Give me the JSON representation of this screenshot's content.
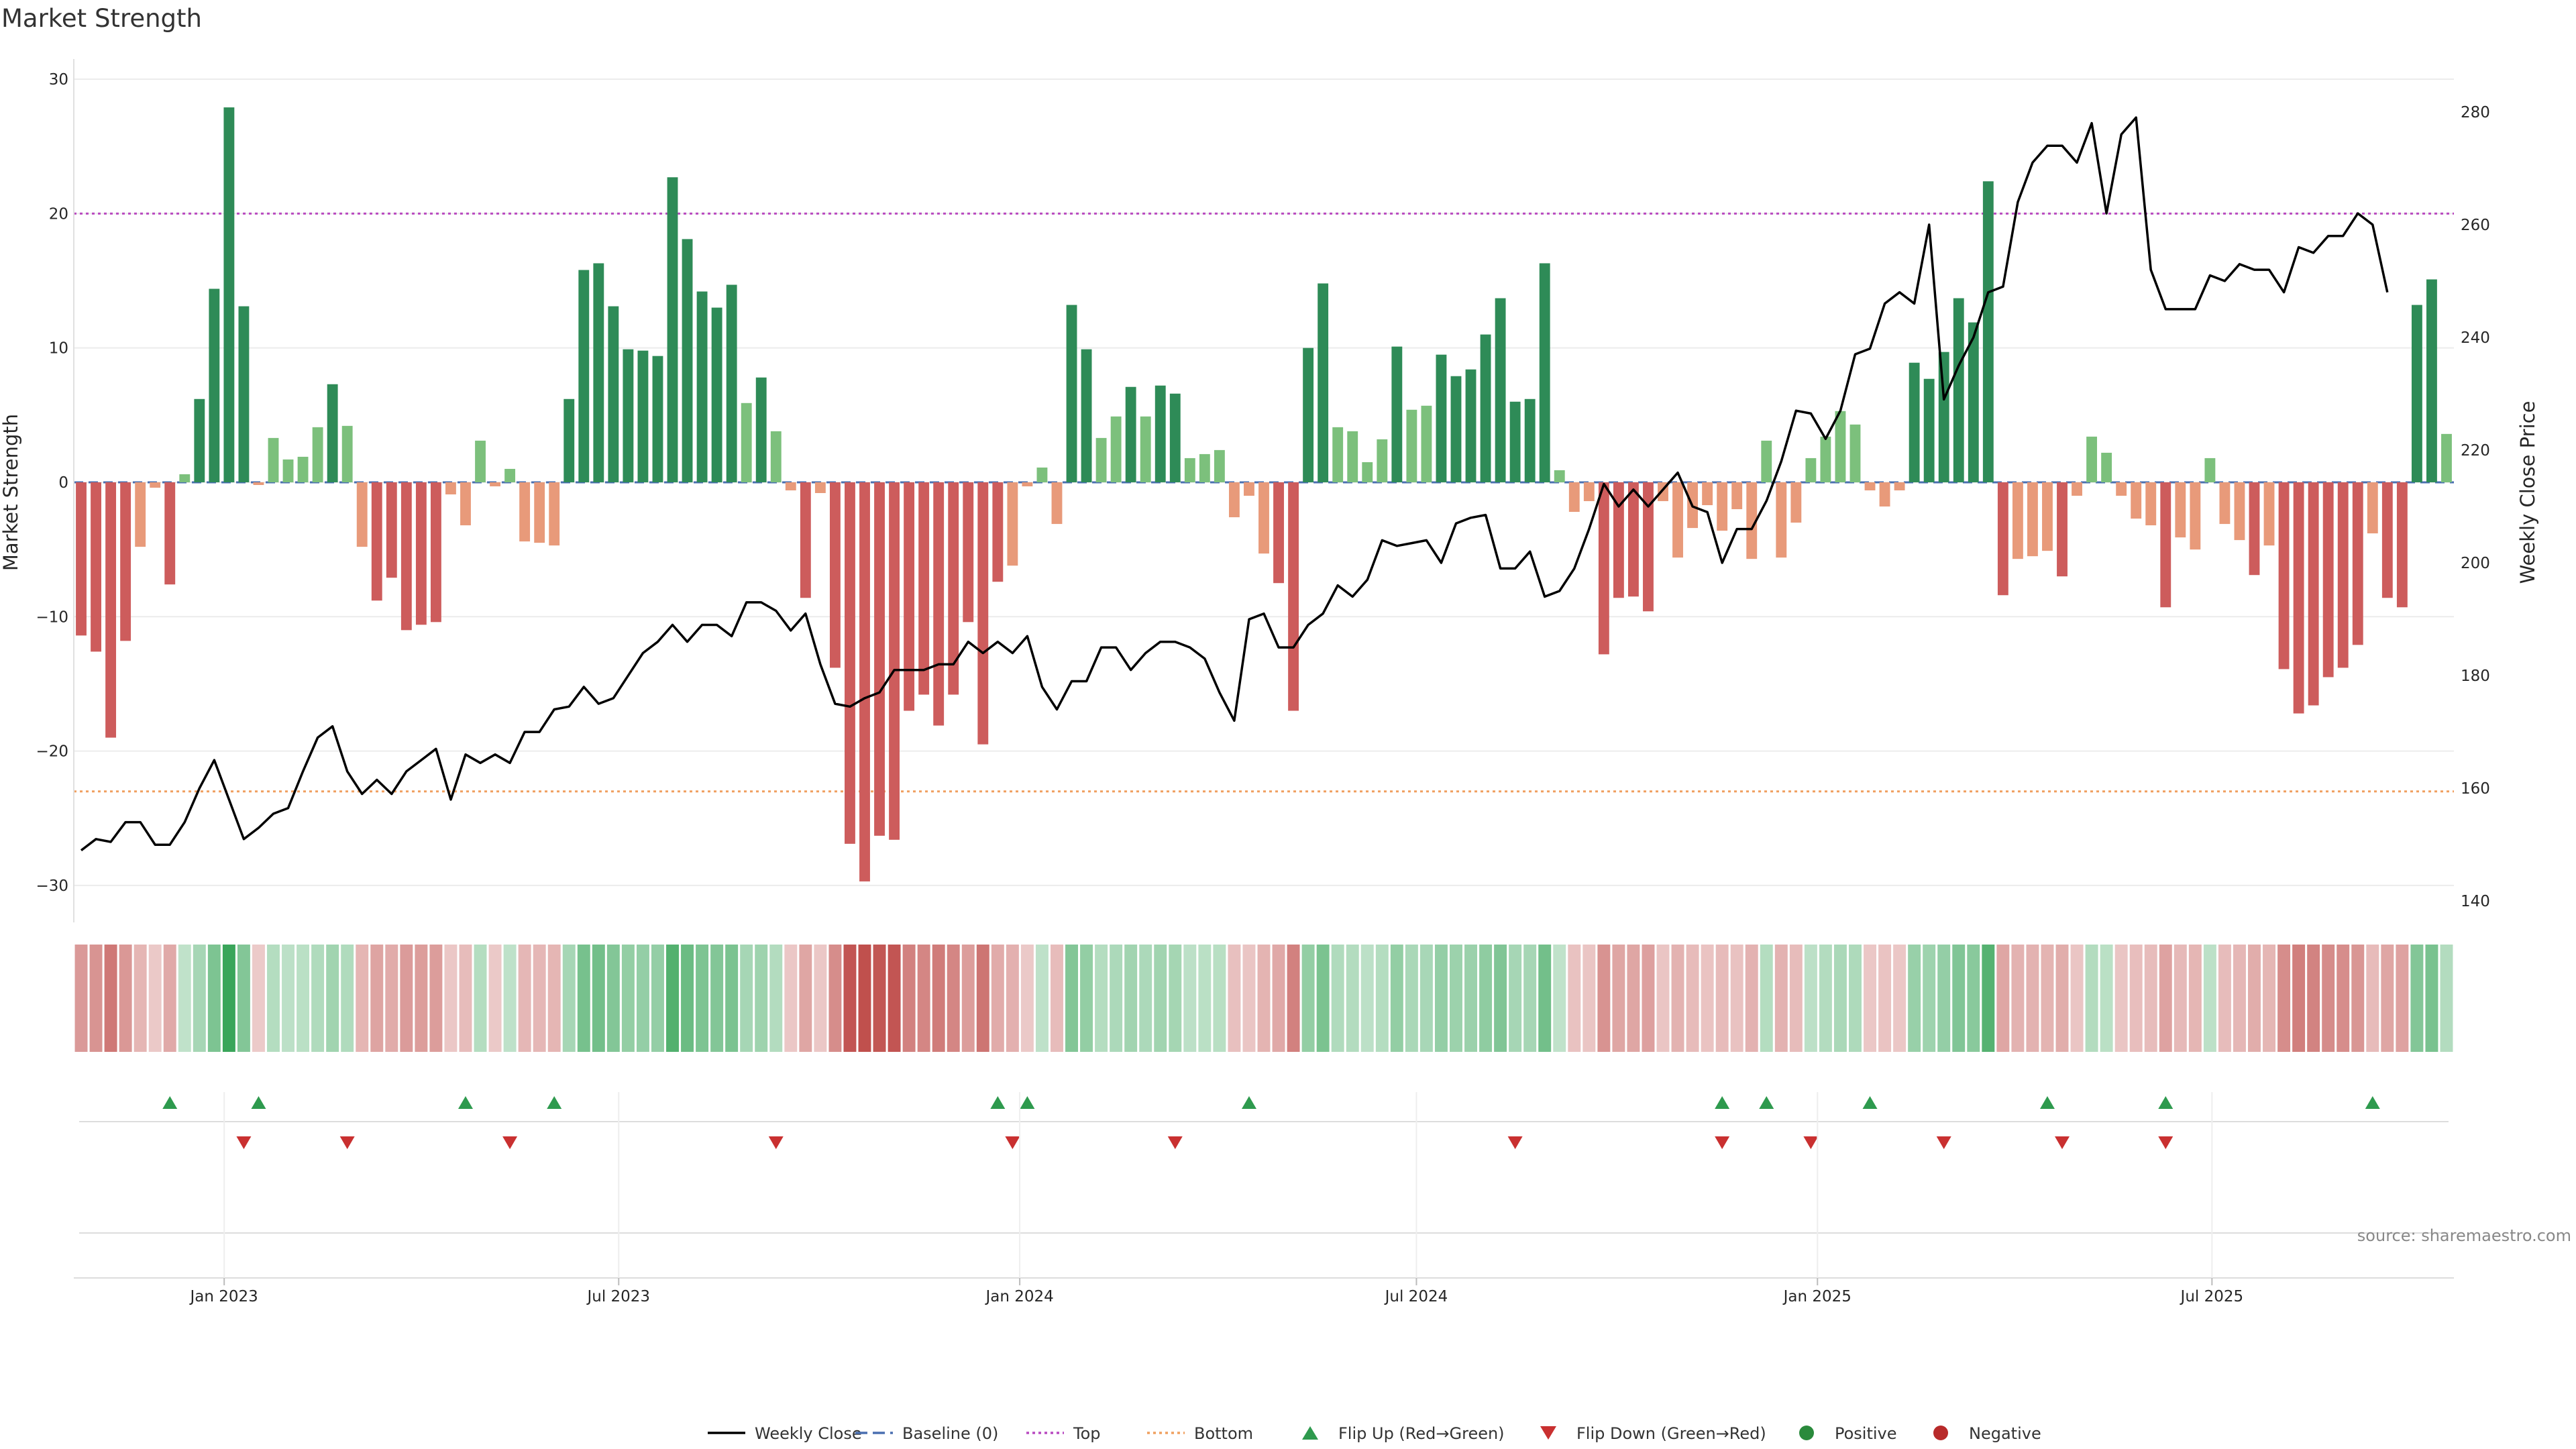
{
  "title": "Market Strength",
  "source": "source: sharemaestro.com",
  "chart_data": {
    "type": "bar",
    "title": "Market Strength",
    "ylabel": "Market Strength",
    "y2label": "Weekly Close Price",
    "ylim": [
      -32,
      30.5
    ],
    "y2lim": [
      138,
      287
    ],
    "yticks": [
      -30,
      -20,
      -10,
      0,
      10,
      20,
      30
    ],
    "y2ticks": [
      140,
      160,
      180,
      200,
      220,
      240,
      260,
      280
    ],
    "x_start_date": "2022-10-24",
    "x_interval_days": 7,
    "x_date_range": [
      "2022-10-24",
      "2025-10-13"
    ],
    "xticks": [
      {
        "label": "Jan 2023",
        "date": "2023-01-01"
      },
      {
        "label": "Jul 2023",
        "date": "2023-07-01"
      },
      {
        "label": "Jan 2024",
        "date": "2024-01-01"
      },
      {
        "label": "Jul 2024",
        "date": "2024-07-01"
      },
      {
        "label": "Jan 2025",
        "date": "2025-01-01"
      },
      {
        "label": "Jul 2025",
        "date": "2025-07-01"
      }
    ],
    "top_line": 20,
    "bottom_line": -23,
    "baseline": 0,
    "strength": [
      -11.4,
      -12.6,
      -19.0,
      -11.8,
      -4.8,
      -0.4,
      -7.6,
      0.6,
      6.2,
      14.4,
      27.9,
      13.1,
      -0.2,
      3.3,
      1.7,
      1.9,
      4.1,
      7.3,
      4.2,
      -4.8,
      -8.8,
      -7.1,
      -11.0,
      -10.6,
      -10.4,
      -0.9,
      -3.2,
      3.1,
      -0.3,
      1.0,
      -4.4,
      -4.5,
      -4.7,
      6.2,
      15.8,
      16.3,
      13.1,
      9.9,
      9.8,
      9.4,
      22.7,
      18.1,
      14.2,
      13.0,
      14.7,
      5.9,
      7.8,
      3.8,
      -0.6,
      -8.6,
      -0.8,
      -13.8,
      -26.9,
      -29.7,
      -26.3,
      -26.6,
      -17.0,
      -15.8,
      -18.1,
      -15.8,
      -10.4,
      -19.5,
      -7.4,
      -6.2,
      -0.3,
      1.1,
      -3.1,
      13.2,
      9.9,
      3.3,
      4.9,
      7.1,
      4.9,
      7.2,
      6.6,
      1.8,
      2.1,
      2.4,
      -2.6,
      -1.0,
      -5.3,
      -7.5,
      -17.0,
      10.0,
      14.8,
      4.1,
      3.8,
      1.5,
      3.2,
      10.1,
      5.4,
      5.7,
      9.5,
      7.9,
      8.4,
      11.0,
      13.7,
      6.0,
      6.2,
      16.3,
      0.9,
      -2.2,
      -1.4,
      -12.8,
      -8.6,
      -8.5,
      -9.6,
      -1.4,
      -5.6,
      -3.4,
      -1.7,
      -3.6,
      -2.0,
      -5.7,
      3.1,
      -5.6,
      -3.0,
      1.8,
      3.4,
      5.3,
      4.3,
      -0.6,
      -1.8,
      -0.6,
      8.9,
      7.7,
      9.7,
      13.7,
      11.9,
      22.4,
      -8.4,
      -5.7,
      -5.5,
      -5.1,
      -7.0,
      -1.0,
      3.4,
      2.2,
      -1.0,
      -2.7,
      -3.2,
      -9.3,
      -4.1,
      -5.0,
      1.8,
      -3.1,
      -4.3,
      -6.9,
      -4.7,
      -13.9,
      -17.2,
      -16.6,
      -14.5,
      -13.8,
      -12.1,
      -3.8,
      -8.6,
      -9.3,
      13.2,
      15.1,
      3.6
    ],
    "weekly_close": [
      149,
      151,
      150.5,
      154,
      154,
      150,
      150,
      154,
      160,
      165,
      158,
      151,
      153,
      155.5,
      156.5,
      163,
      169,
      171,
      163,
      159,
      161.5,
      159,
      163,
      165,
      167,
      158,
      166,
      164.5,
      166,
      164.5,
      170,
      170,
      174,
      174.5,
      178,
      175,
      176,
      180,
      184,
      186,
      189,
      186,
      189,
      189,
      187,
      193,
      193,
      191.5,
      188,
      191,
      182,
      175,
      174.5,
      176,
      177,
      181,
      181,
      181,
      182,
      182,
      186,
      184,
      186,
      184,
      187,
      178,
      174,
      179,
      179,
      185,
      185,
      181,
      184,
      186,
      186,
      185,
      183,
      177,
      172,
      190,
      191,
      185,
      185,
      189,
      191,
      196,
      194,
      197,
      204,
      203,
      203.5,
      204,
      200,
      207,
      208,
      208.5,
      199,
      199,
      202,
      194,
      195,
      199,
      206,
      214,
      210,
      213,
      210,
      213,
      216,
      210,
      209,
      200,
      206,
      206,
      211,
      218,
      227,
      226.5,
      222,
      227,
      237,
      238,
      246,
      248,
      246,
      260,
      229,
      235,
      240,
      248,
      249,
      264,
      271,
      274,
      274,
      271,
      278,
      262,
      276,
      279,
      252,
      245,
      245,
      245,
      251,
      250,
      253,
      252,
      252,
      248,
      256,
      255,
      258,
      258,
      262,
      260,
      248
    ],
    "markers": {
      "flip_up": [
        6,
        12,
        26,
        32,
        62,
        64,
        79,
        111,
        114,
        121,
        133,
        141,
        155
      ],
      "flip_down": [
        11,
        18,
        29,
        47,
        63,
        74,
        97,
        111,
        117,
        126,
        134,
        141
      ]
    },
    "legend": [
      {
        "label": "Weekly Close",
        "color": "#000000",
        "kind": "line"
      },
      {
        "label": "Baseline (0)",
        "color": "#4a6fb0",
        "kind": "dashed"
      },
      {
        "label": "Top",
        "color": "#b94ac0",
        "kind": "dotted"
      },
      {
        "label": "Bottom",
        "color": "#f0a060",
        "kind": "dotted"
      },
      {
        "label": "Flip Up (Red→Green)",
        "color": "#2e9a4e",
        "kind": "tri-up"
      },
      {
        "label": "Flip Down (Green→Red)",
        "color": "#c93030",
        "kind": "tri-down"
      },
      {
        "label": "Positive",
        "color": "#2a8a3c",
        "kind": "dot"
      },
      {
        "label": "Negative",
        "color": "#b82a2a",
        "kind": "dot"
      }
    ],
    "colors": {
      "pos_strong": "#2e8b57",
      "pos_weak": "#7cc07c",
      "neg_strong": "#cd5c5c",
      "neg_weak": "#e89a7a",
      "price": "#000000",
      "top": "#b94ac0",
      "bottom": "#f0a060",
      "baseline": "#4a6fb0",
      "flip_up": "#2e9a4e",
      "flip_down": "#c93030"
    }
  }
}
